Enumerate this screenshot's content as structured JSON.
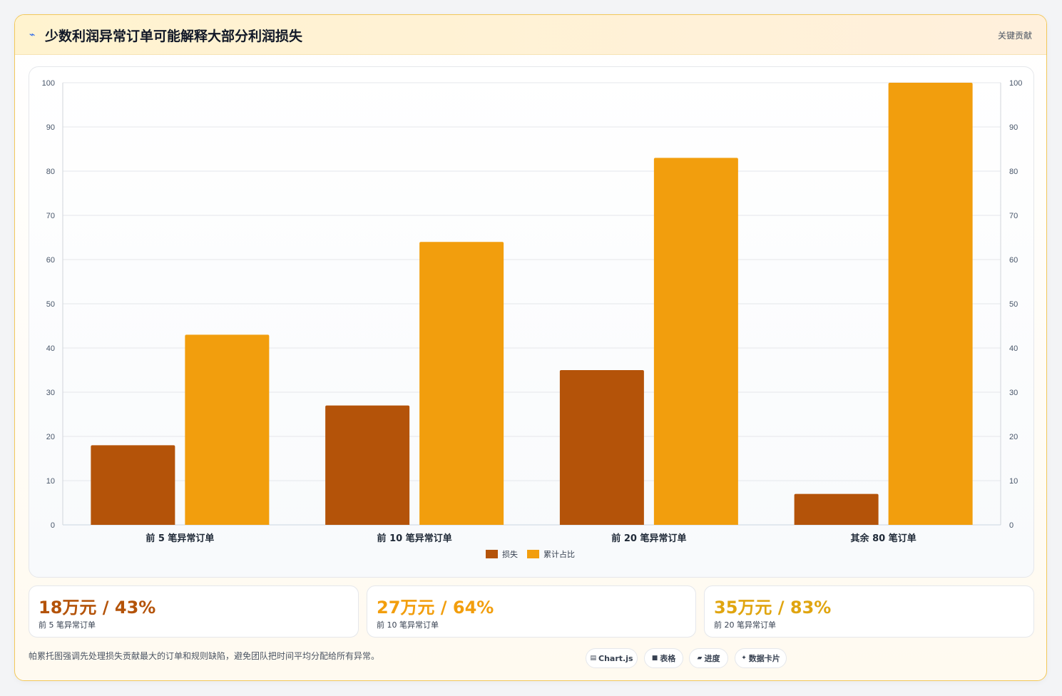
{
  "header": {
    "icon": "pulse-icon",
    "title": "少数利润异常订单可能解释大部分利润损失",
    "tag": "关键贡献"
  },
  "chart_data": {
    "type": "bar",
    "categories": [
      "前 5 笔异常订单",
      "前 10 笔异常订单",
      "前 20 笔异常订单",
      "其余 80 笔订单"
    ],
    "series": [
      {
        "name": "损失",
        "values": [
          18,
          27,
          35,
          7
        ],
        "color": "#b45309"
      },
      {
        "name": "累计占比",
        "values": [
          43,
          64,
          83,
          100
        ],
        "color": "#f29e0d"
      }
    ],
    "ylim": [
      0,
      100
    ],
    "yticks": [
      0,
      10,
      20,
      30,
      40,
      50,
      60,
      70,
      80,
      90,
      100
    ],
    "y2lim": [
      0,
      100
    ],
    "grid": true,
    "legend": "bottom"
  },
  "stats": [
    {
      "value": "18万元 / 43%",
      "label": "前 5 笔异常订单",
      "color": "#b45309"
    },
    {
      "value": "27万元 / 64%",
      "label": "前 10 笔异常订单",
      "color": "#f29e0d"
    },
    {
      "value": "35万元 / 83%",
      "label": "前 20 笔异常订单",
      "color": "#e0a510"
    }
  ],
  "footnote": "帕累托图强调先处理损失贡献最大的订单和规则缺陷，避免团队把时间平均分配给所有异常。",
  "chips": [
    {
      "icon": "chart-icon",
      "glyph": "▤",
      "label": "Chart.js"
    },
    {
      "icon": "table-icon",
      "glyph": "■",
      "label": "表格"
    },
    {
      "icon": "progress-icon",
      "glyph": "▰",
      "label": "进度"
    },
    {
      "icon": "sparkle-icon",
      "glyph": "✦",
      "label": "数据卡片"
    }
  ]
}
